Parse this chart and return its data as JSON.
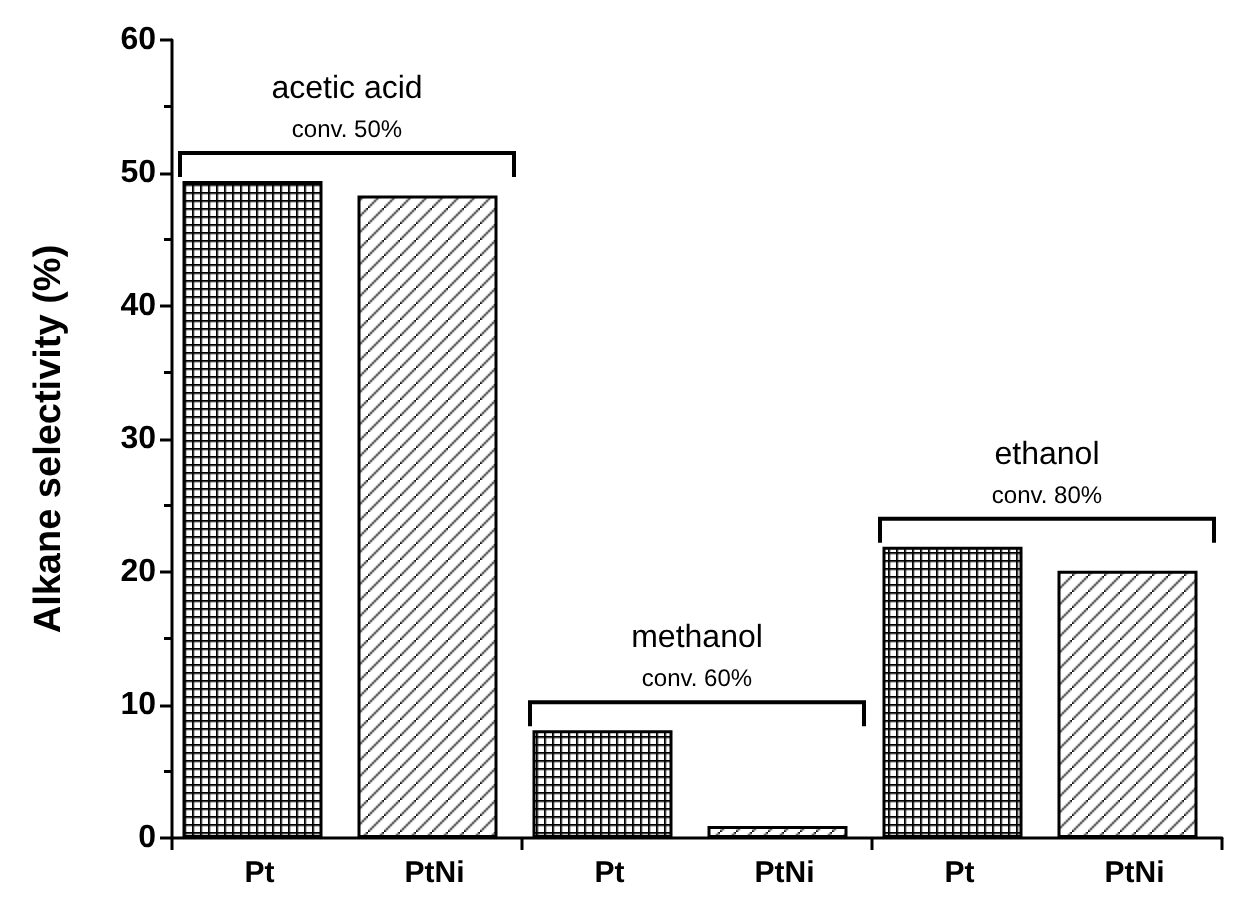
{
  "chart_data": {
    "type": "bar",
    "ylabel": "Alkane selectivity (%)",
    "categories": [
      "Pt",
      "PtNi",
      "Pt",
      "PtNi",
      "Pt",
      "PtNi"
    ],
    "values": [
      49.4,
      48.3,
      8.1,
      0.9,
      21.9,
      20.1
    ],
    "colors": [
      "#000000",
      "#000000",
      "#000000",
      "#000000",
      "#000000",
      "#000000"
    ],
    "ylim": [
      0,
      60
    ],
    "yticks": [
      0,
      10,
      20,
      30,
      40,
      50,
      60
    ],
    "grid": false,
    "annotations": [
      "acetic acid",
      "conv. 50%",
      "methanol",
      "conv. 60%",
      "ethanol",
      "conv. 80%"
    ]
  }
}
